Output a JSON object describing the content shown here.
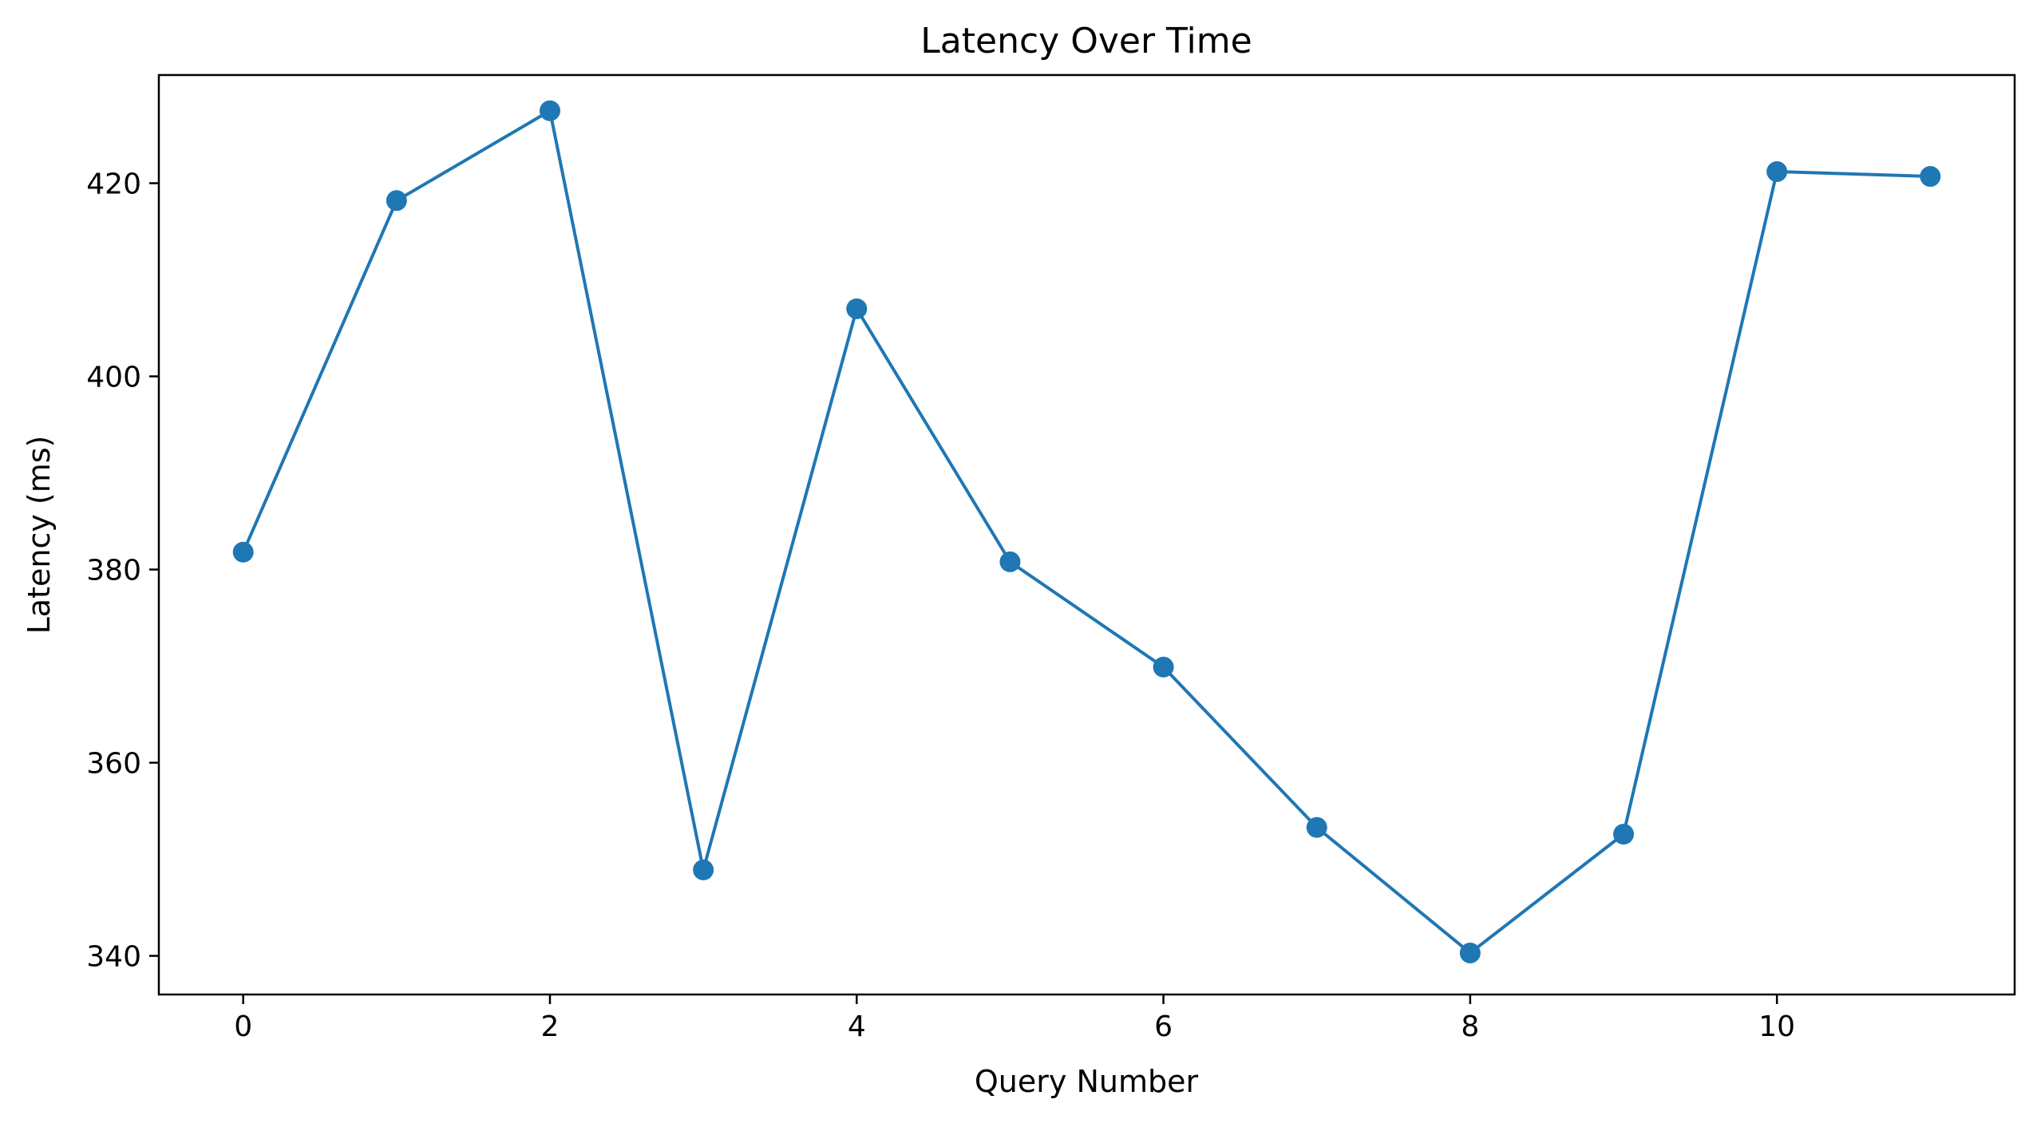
{
  "chart_data": {
    "type": "line",
    "title": "Latency Over Time",
    "xlabel": "Query Number",
    "ylabel": "Latency (ms)",
    "x": [
      0,
      1,
      2,
      3,
      4,
      5,
      6,
      7,
      8,
      9,
      10,
      11
    ],
    "series": [
      {
        "values": [
          381.8,
          418.2,
          427.5,
          348.9,
          407.0,
          380.8,
          369.9,
          353.3,
          340.3,
          352.6,
          421.2,
          420.7
        ],
        "color": "#1f77b4",
        "marker": "circle"
      }
    ],
    "xlim": [
      -0.55,
      11.55
    ],
    "ylim": [
      336.0,
      431.2
    ],
    "x_ticks": [
      0,
      2,
      4,
      6,
      8,
      10
    ],
    "x_tick_labels": [
      "0",
      "2",
      "4",
      "6",
      "8",
      "10"
    ],
    "y_ticks": [
      340,
      360,
      380,
      400,
      420
    ],
    "y_tick_labels": [
      "340",
      "360",
      "380",
      "400",
      "420"
    ],
    "grid": false,
    "legend": "none"
  }
}
